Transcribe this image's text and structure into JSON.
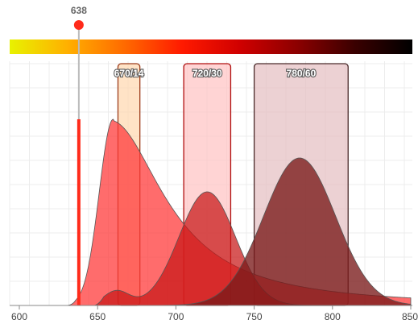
{
  "chart_data": {
    "type": "area",
    "xlim": [
      600,
      850
    ],
    "x_ticks": [
      600,
      650,
      700,
      750,
      800,
      850
    ],
    "ylim": [
      0,
      1
    ],
    "grid": true,
    "spectrum_bar": {
      "range": [
        530,
        850
      ],
      "colors": [
        "#e8f200",
        "#ffb000",
        "#ff6a00",
        "#ff1a00",
        "#d00000",
        "#8c0000",
        "#3a0000",
        "#000000"
      ]
    },
    "laser": {
      "label": "638",
      "wavelength": 638,
      "color": "#ff2a1a",
      "intensity": 0.77
    },
    "filters": [
      {
        "label": "670/14",
        "center": 670,
        "width": 14,
        "fill": "#ffd9b3",
        "stroke": "#9c3c1a"
      },
      {
        "label": "720/30",
        "center": 720,
        "width": 30,
        "fill": "#ffc6c6",
        "stroke": "#b01010"
      },
      {
        "label": "780/60",
        "center": 780,
        "width": 60,
        "fill": "#e6c2c4",
        "stroke": "#4a2a2a"
      }
    ],
    "series": [
      {
        "peak_type": "asym",
        "color": "#ff3b3b",
        "opacity": 0.75,
        "start": 630,
        "peak": 660,
        "height": 0.77,
        "rise": 9,
        "tail": 40,
        "tail_amp": 0.22,
        "tail_decay": 55
      },
      {
        "peak_type": "gauss",
        "color": "#c81616",
        "opacity": 0.72,
        "start": 648,
        "peak": 720,
        "height": 0.47,
        "sigma": 18,
        "bump_center": 662,
        "bump_height": 0.06,
        "bump_sigma": 8
      },
      {
        "peak_type": "gauss",
        "color": "#7a1a1a",
        "opacity": 0.78,
        "start": 640,
        "peak": 779,
        "height": 0.61,
        "sigma": 23
      }
    ]
  }
}
